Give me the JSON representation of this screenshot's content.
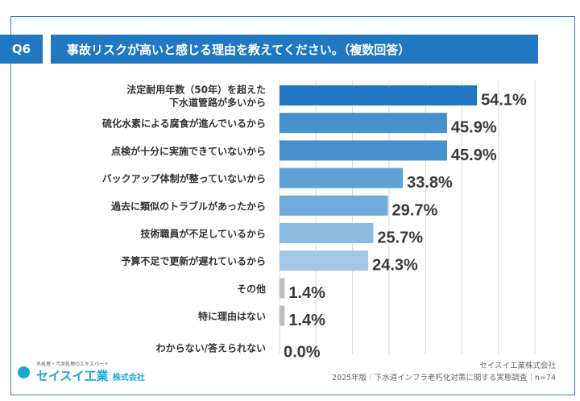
{
  "header": {
    "q_label": "Q6",
    "title": "事故リスクが高いと感じる理由を教えてください。（複数回答）"
  },
  "chart_data": {
    "type": "bar",
    "orientation": "horizontal",
    "title": "事故リスクが高いと感じる理由を教えてください。（複数回答）",
    "categories": [
      [
        "法定耐用年数（50年）を超えた",
        "下水道管路が多いから"
      ],
      [
        "硫化水素による腐食が進んでいるから"
      ],
      [
        "点検が十分に実施できていないから"
      ],
      [
        "バックアップ体制が整っていないから"
      ],
      [
        "過去に類似のトラブルがあったから"
      ],
      [
        "技術職員が不足しているから"
      ],
      [
        "予算不足で更新が遅れているから"
      ],
      [
        "その他"
      ],
      [
        "特に理由はない"
      ],
      [
        "わからない/答えられない"
      ]
    ],
    "values": [
      54.1,
      45.9,
      45.9,
      33.8,
      29.7,
      25.7,
      24.3,
      1.4,
      1.4,
      0.0
    ],
    "value_labels": [
      "54.1%",
      "45.9%",
      "45.9%",
      "33.8%",
      "29.7%",
      "25.7%",
      "24.3%",
      "1.4%",
      "1.4%",
      "0.0%"
    ],
    "colors": [
      "#1f78c1",
      "#4690cd",
      "#4690cd",
      "#5fa1d5",
      "#72acda",
      "#8bbbe1",
      "#a3c8e7",
      "#bdbdbd",
      "#bdbdbd",
      "#bdbdbd"
    ],
    "xlim": [
      0,
      70
    ],
    "grid": true
  },
  "footer": {
    "company": "セイスイ工業株式会社",
    "source": "2025年版｜下水道インフラ老朽化対策に関する実態調査｜n=74",
    "logo_tagline": "水処理・汚泥処理のエキスパート",
    "logo_name": "セイスイ工業",
    "logo_suffix": "株式会社"
  }
}
